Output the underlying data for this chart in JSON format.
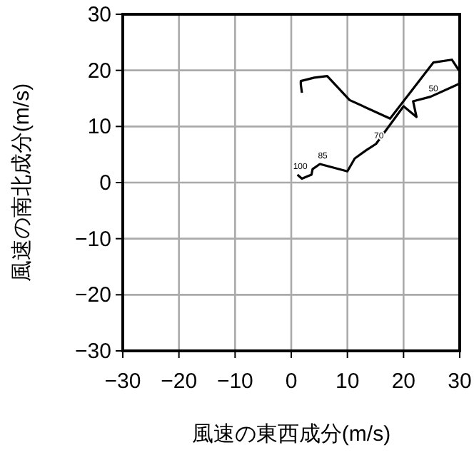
{
  "chart_data": {
    "type": "line",
    "xlabel": "風速の東西成分(m/s)",
    "ylabel": "風速の南北成分(m/s)",
    "xlim": [
      -30,
      30
    ],
    "ylim": [
      -30,
      30
    ],
    "xticks": [
      -30,
      -20,
      -10,
      0,
      10,
      20,
      30
    ],
    "yticks": [
      -30,
      -20,
      -10,
      0,
      10,
      20,
      30
    ],
    "grid": true,
    "series": [
      {
        "color": "#000000",
        "x": [
          1.1,
          1.9,
          3.1,
          3.6,
          3.8,
          5.1,
          10,
          11.3,
          13.4,
          15.1,
          20,
          22.3,
          21.7,
          24.8,
          29.9,
          30,
          28.6,
          25.3,
          17.6,
          10.4,
          6.4,
          4.1,
          1.7,
          1.7,
          1.9
        ],
        "values": [
          1.4,
          0.7,
          1.2,
          1.4,
          2.4,
          3.3,
          2.0,
          4.3,
          5.8,
          6.9,
          13.6,
          11.7,
          14.5,
          15.3,
          17.6,
          19.8,
          21.9,
          21.4,
          11.4,
          14.7,
          19.0,
          18.7,
          18.1,
          17.5,
          16.0
        ]
      }
    ],
    "annotations": [
      {
        "text": "100",
        "x": 1.1,
        "y": 1.4
      },
      {
        "text": "85",
        "x": 5.1,
        "y": 3.3
      },
      {
        "text": "70",
        "x": 15.1,
        "y": 6.9
      },
      {
        "text": "50",
        "x": 24.8,
        "y": 15.3
      }
    ]
  }
}
